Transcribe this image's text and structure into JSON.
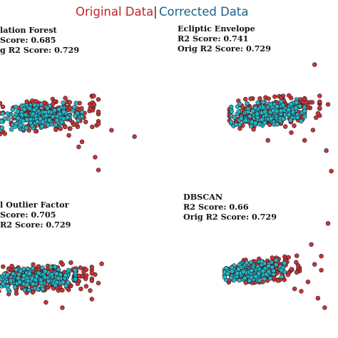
{
  "legend": {
    "original_label": "Original Data",
    "separator": "|",
    "corrected_label": "Corrected Data",
    "original_color": "#c4232b",
    "corrected_color": "#1f5f8b"
  },
  "colors": {
    "original_points": "#d03236",
    "corrected_points": "#25b6c8",
    "point_edge": "#222222"
  },
  "chart_data": [
    {
      "type": "scatter",
      "method": "Isolation Forest",
      "title_lines": [
        "lation Forest",
        "Score: 0.685",
        "g R2 Score: 0.729"
      ],
      "r2_score": 0.685,
      "orig_r2_score": 0.729,
      "series": [
        {
          "name": "Original Data",
          "cluster": {
            "cx": 0.3,
            "cy": 0.45,
            "rx": 0.3,
            "ry": 0.12
          },
          "count": 230,
          "outliers": [
            [
              0.55,
              0.4
            ],
            [
              0.6,
              0.52
            ],
            [
              0.68,
              0.57
            ],
            [
              0.82,
              0.62
            ],
            [
              0.48,
              0.7
            ],
            [
              0.58,
              0.78
            ],
            [
              0.6,
              0.88
            ],
            [
              0.42,
              0.61
            ],
            [
              0.5,
              0.66
            ]
          ]
        },
        {
          "name": "Corrected Data",
          "cluster": {
            "cx": 0.24,
            "cy": 0.46,
            "rx": 0.26,
            "ry": 0.09
          },
          "count": 200
        }
      ]
    },
    {
      "type": "scatter",
      "method": "Ecliptic Envelope",
      "title_lines": [
        "Ecliptic Envelope",
        "R2 Score: 0.741",
        "Orig R2 Score: 0.729"
      ],
      "r2_score": 0.741,
      "orig_r2_score": 0.729,
      "series": [
        {
          "name": "Original Data",
          "cluster": {
            "cx": 0.62,
            "cy": 0.44,
            "rx": 0.27,
            "ry": 0.12
          },
          "count": 230,
          "outliers": [
            [
              0.86,
              0.07
            ],
            [
              0.94,
              0.38
            ],
            [
              0.88,
              0.45
            ],
            [
              0.85,
              0.58
            ],
            [
              0.8,
              0.66
            ],
            [
              0.93,
              0.74
            ],
            [
              0.96,
              0.9
            ],
            [
              0.58,
              0.66
            ],
            [
              0.72,
              0.6
            ]
          ]
        },
        {
          "name": "Corrected Data",
          "cluster": {
            "cx": 0.58,
            "cy": 0.45,
            "rx": 0.22,
            "ry": 0.09
          },
          "count": 200
        }
      ]
    },
    {
      "type": "scatter",
      "method": "Local Outlier Factor",
      "title_lines": [
        "l Outlier Factor",
        "Score: 0.705",
        "R2 Score: 0.729"
      ],
      "r2_score": 0.705,
      "orig_r2_score": 0.729,
      "series": [
        {
          "name": "Original Data",
          "cluster": {
            "cx": 0.26,
            "cy": 0.45,
            "rx": 0.3,
            "ry": 0.13
          },
          "count": 230,
          "outliers": [
            [
              0.62,
              0.32
            ],
            [
              0.58,
              0.42
            ],
            [
              0.6,
              0.5
            ],
            [
              0.55,
              0.57
            ],
            [
              0.56,
              0.65
            ],
            [
              0.38,
              0.73
            ],
            [
              0.28,
              0.68
            ]
          ]
        },
        {
          "name": "Corrected Data",
          "cluster": {
            "cx": 0.22,
            "cy": 0.46,
            "rx": 0.24,
            "ry": 0.1
          },
          "count": 200
        }
      ]
    },
    {
      "type": "scatter",
      "method": "DBSCAN",
      "title_lines": [
        "DBSCAN",
        "R2 Score: 0.66",
        "Orig R2 Score: 0.729"
      ],
      "r2_score": 0.66,
      "orig_r2_score": 0.729,
      "series": [
        {
          "name": "Original Data",
          "cluster": {
            "cx": 0.55,
            "cy": 0.42,
            "rx": 0.22,
            "ry": 0.1
          },
          "count": 200,
          "outliers": [
            [
              0.94,
              0.02
            ],
            [
              0.84,
              0.2
            ],
            [
              0.9,
              0.3
            ],
            [
              0.86,
              0.37
            ],
            [
              0.9,
              0.42
            ],
            [
              0.82,
              0.52
            ],
            [
              0.78,
              0.6
            ],
            [
              0.88,
              0.66
            ],
            [
              0.92,
              0.74
            ],
            [
              0.74,
              0.58
            ],
            [
              0.7,
              0.46
            ]
          ]
        },
        {
          "name": "Corrected Data",
          "cluster": {
            "cx": 0.5,
            "cy": 0.43,
            "rx": 0.18,
            "ry": 0.08
          },
          "count": 180
        }
      ]
    }
  ]
}
